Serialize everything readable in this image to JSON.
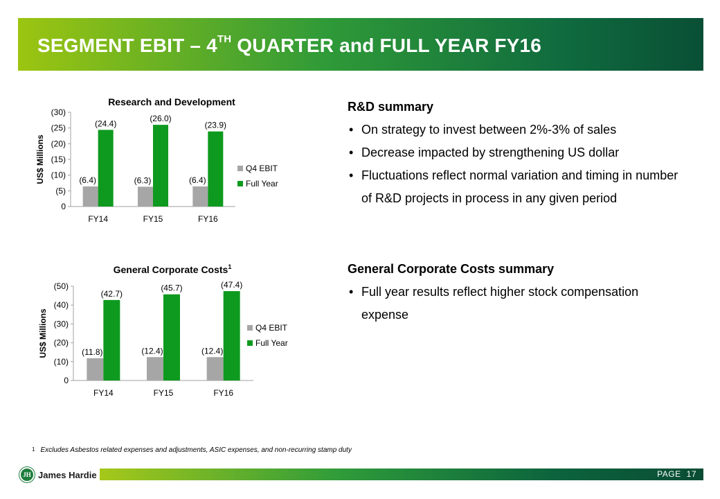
{
  "header": {
    "title_main": "SEGMENT EBIT – 4",
    "title_sup": "TH",
    "title_rest": " QUARTER and FULL YEAR FY16"
  },
  "colors": {
    "q4": "#a6a6a6",
    "full_year": "#0e9a1e",
    "banner_start": "#9cc511",
    "banner_end": "#0a4f35"
  },
  "chart_data": [
    {
      "type": "bar",
      "title": "Research and Development",
      "title_sup": "",
      "ylabel": "US$ Millions",
      "categories": [
        "FY14",
        "FY15",
        "FY16"
      ],
      "yticks": [
        "0",
        "(5)",
        "(10)",
        "(15)",
        "(20)",
        "(25)",
        "(30)"
      ],
      "ylim": [
        0,
        30
      ],
      "series": [
        {
          "name": "Q4 EBIT",
          "values": [
            6.4,
            6.3,
            6.4
          ],
          "labels": [
            "(6.4)",
            "(6.3)",
            "(6.4)"
          ]
        },
        {
          "name": "Full Year",
          "values": [
            24.4,
            26.0,
            23.9
          ],
          "labels": [
            "(24.4)",
            "(26.0)",
            "(23.9)"
          ]
        }
      ],
      "legend": "right"
    },
    {
      "type": "bar",
      "title": "General Corporate Costs",
      "title_sup": "1",
      "ylabel": "US$ Millions",
      "categories": [
        "FY14",
        "FY15",
        "FY16"
      ],
      "yticks": [
        "0",
        "(10)",
        "(20)",
        "(30)",
        "(40)",
        "(50)"
      ],
      "ylim": [
        0,
        50
      ],
      "series": [
        {
          "name": "Q4 EBIT",
          "values": [
            11.8,
            12.4,
            12.4
          ],
          "labels": [
            "(11.8)",
            "(12.4)",
            "(12.4)"
          ]
        },
        {
          "name": "Full Year",
          "values": [
            42.7,
            45.7,
            47.4
          ],
          "labels": [
            "(42.7)",
            "(45.7)",
            "(47.4)"
          ]
        }
      ],
      "legend": "right"
    }
  ],
  "rd_summary": {
    "heading": "R&D summary",
    "bullets": [
      "On strategy to invest between 2%-3% of sales",
      "Decrease impacted by strengthening US dollar",
      "Fluctuations reflect normal variation and timing in number of R&D projects in process in any given period"
    ]
  },
  "gcc_summary": {
    "heading": "General Corporate Costs summary",
    "bullets": [
      "Full year results reflect higher stock compensation expense"
    ]
  },
  "footnote": {
    "num": "1",
    "text": "Excludes Asbestos related expenses and adjustments, ASIC expenses, and non-recurring stamp duty"
  },
  "footer": {
    "page_label": "PAGE",
    "page_number": "17",
    "logo_text": "James Hardie",
    "logo_mark": "JH"
  }
}
